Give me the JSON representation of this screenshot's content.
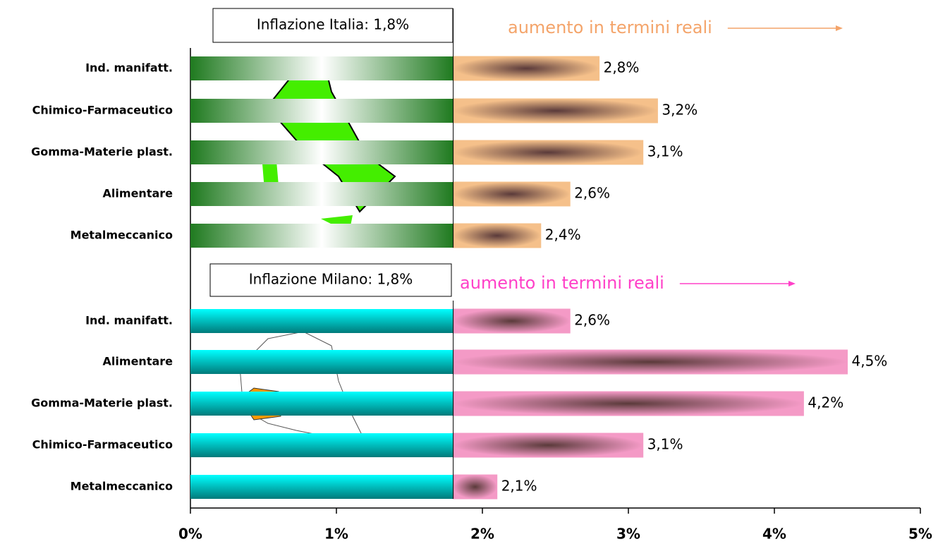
{
  "chart_data": {
    "type": "bar",
    "orientation": "horizontal",
    "xlim": [
      0,
      5
    ],
    "xticks": [
      {
        "value": 0,
        "label": "0%"
      },
      {
        "value": 1,
        "label": "1%"
      },
      {
        "value": 2,
        "label": "2%"
      },
      {
        "value": 3,
        "label": "3%"
      },
      {
        "value": 4,
        "label": "4%"
      },
      {
        "value": 5,
        "label": "5%"
      }
    ],
    "groups": [
      {
        "title": "Inflazione Italia: 1,8%",
        "inflation": 1.8,
        "annotation": "aumento in termini reali",
        "inflation_color": "#1f7a1f",
        "color": "#f5c08a",
        "annotation_color": "#f4a46a",
        "categories": [
          "Ind. manifatt.",
          "Chimico-Farmaceutico",
          "Gomma-Materie plast.",
          "Alimentare",
          "Metalmeccanico"
        ],
        "values": [
          2.8,
          3.2,
          3.1,
          2.6,
          2.4
        ],
        "value_labels": [
          "2,8%",
          "3,2%",
          "3,1%",
          "2,6%",
          "2,4%"
        ]
      },
      {
        "title": "Inflazione Milano: 1,8%",
        "inflation": 1.8,
        "annotation": "aumento in termini reali",
        "inflation_color": "#00e5e5",
        "color": "#f49ac6",
        "annotation_color": "#ff40c8",
        "categories": [
          "Ind. manifatt.",
          "Alimentare",
          "Gomma-Materie plast.",
          "Chimico-Farmaceutico",
          "Metalmeccanico"
        ],
        "values": [
          2.6,
          4.5,
          4.2,
          3.1,
          2.1
        ],
        "value_labels": [
          "2,6%",
          "4,5%",
          "4,2%",
          "3,1%",
          "2,1%"
        ]
      }
    ]
  }
}
